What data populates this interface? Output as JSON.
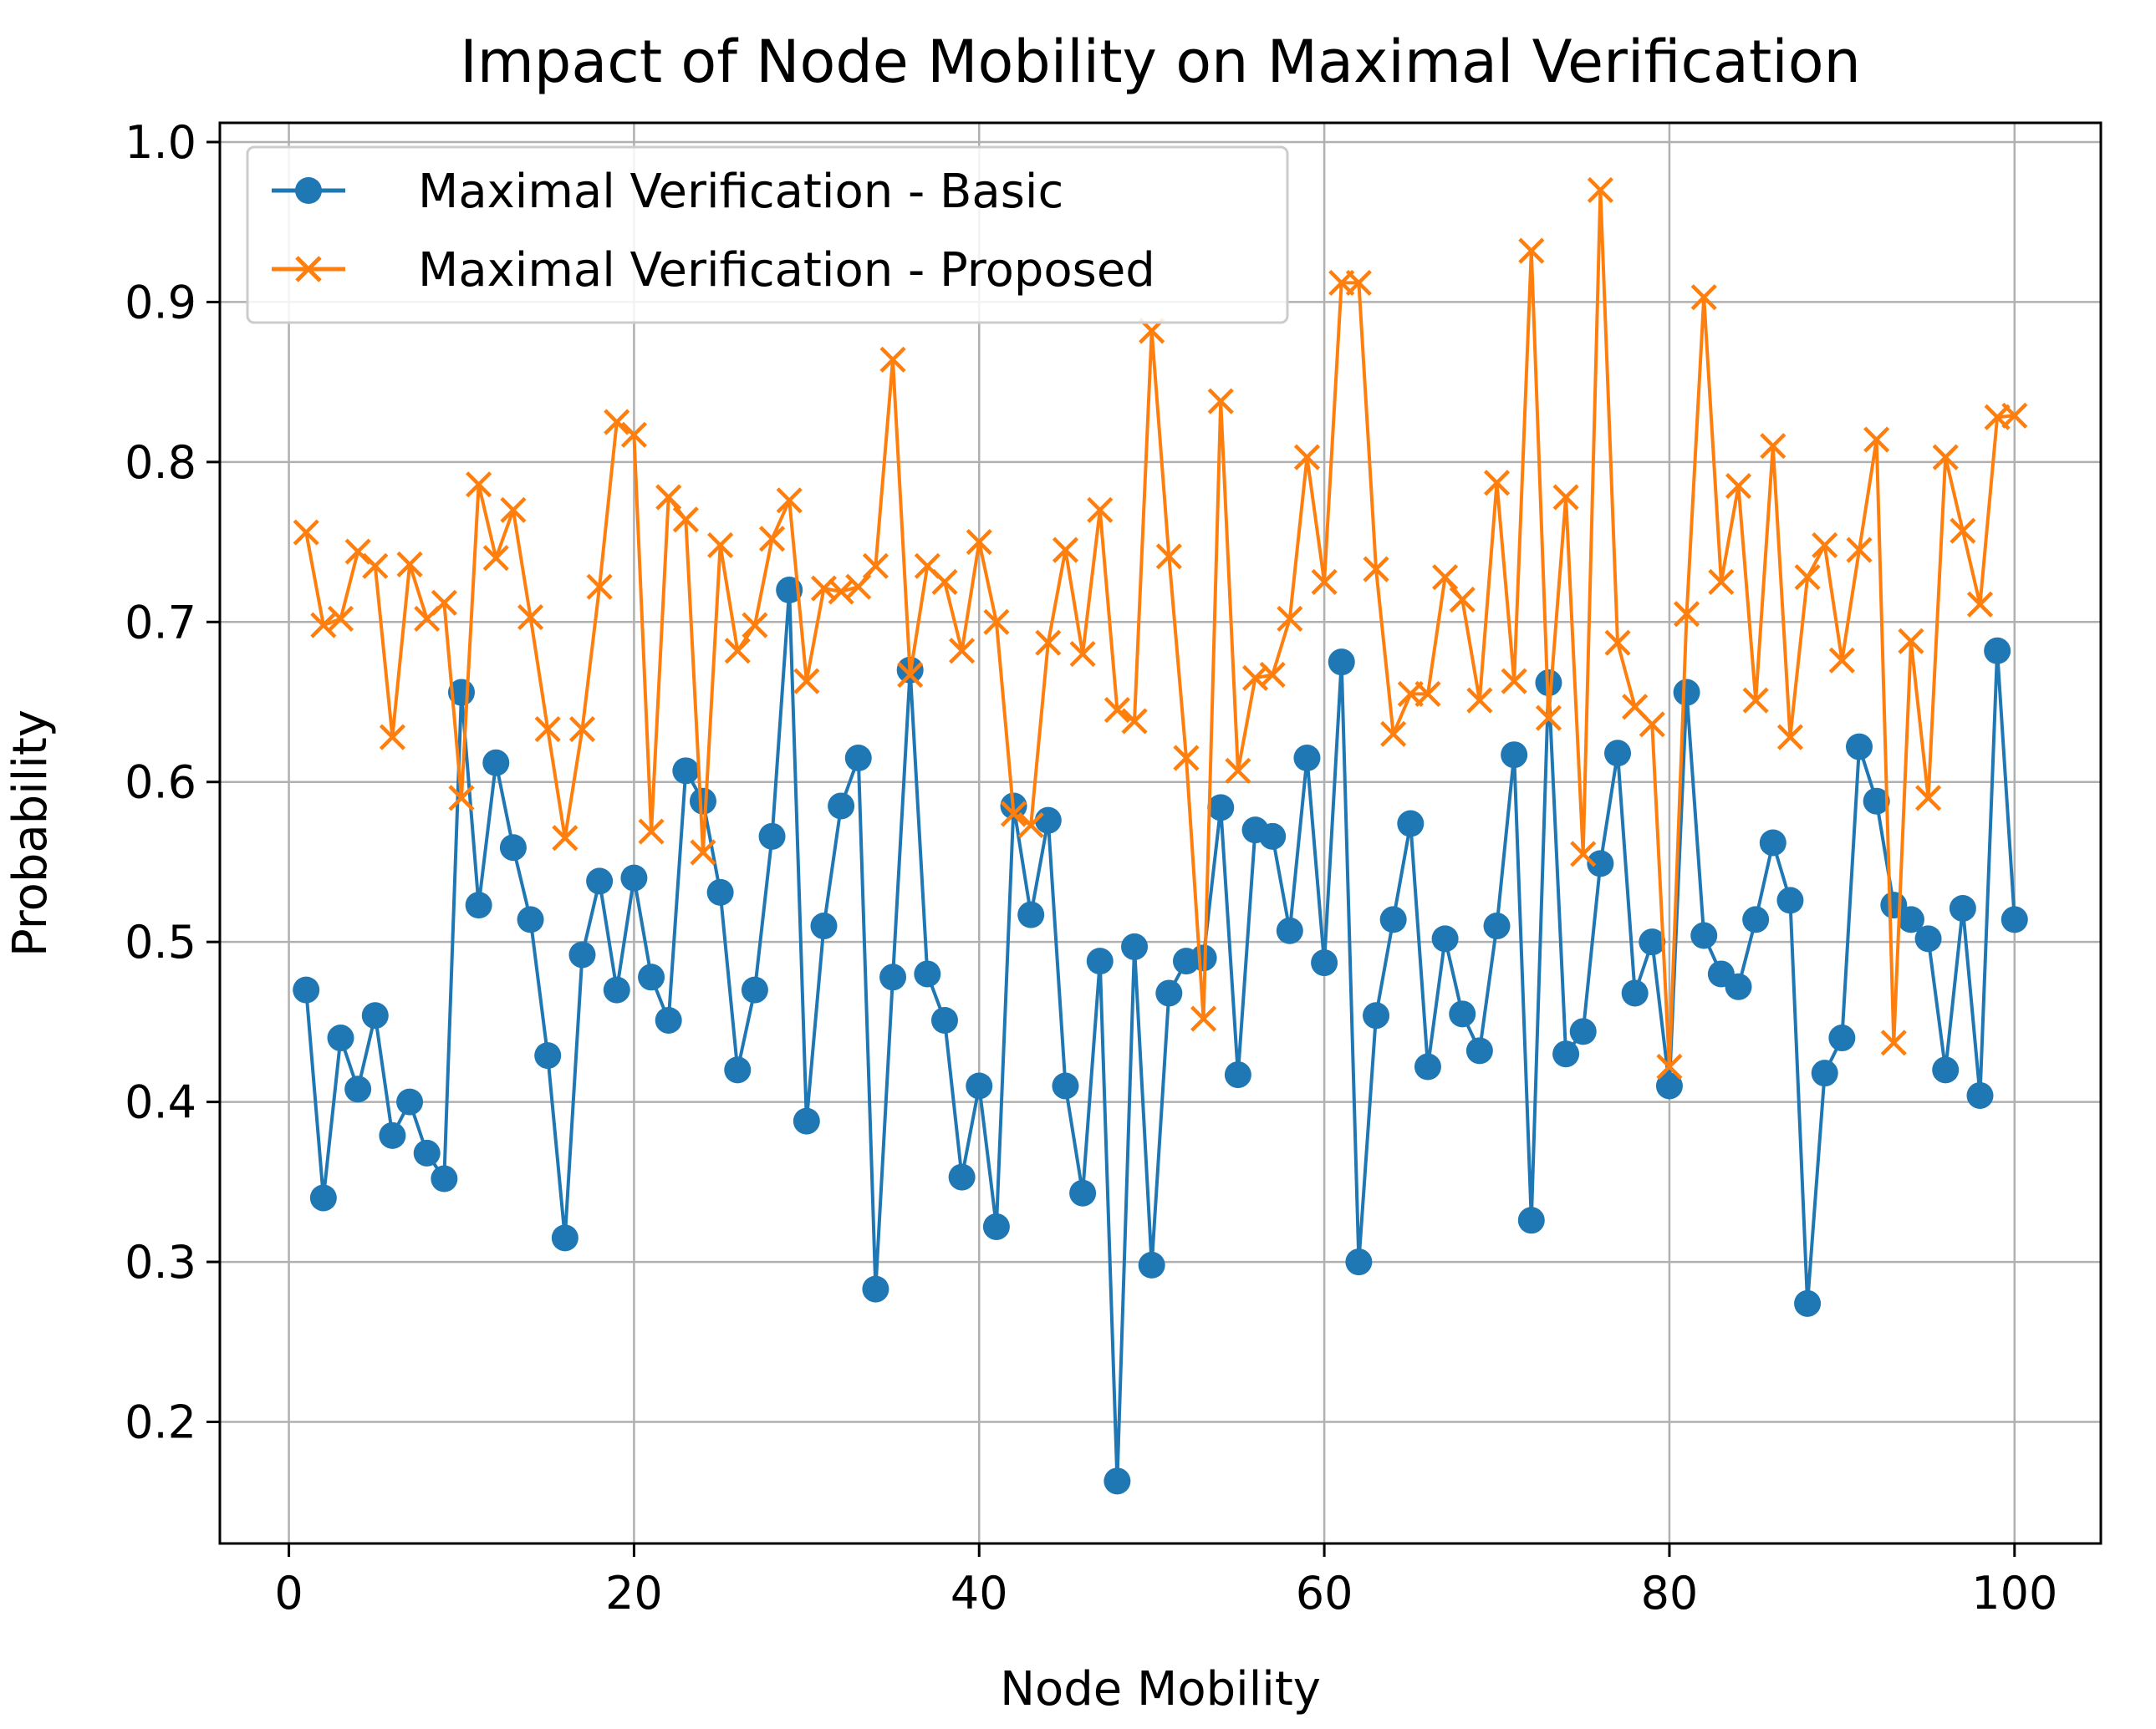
{
  "chart_data": {
    "type": "line",
    "title": "Impact of Node Mobility on Maximal Verification",
    "xlabel": "Node Mobility",
    "ylabel": "Probability",
    "xlim": [
      -4,
      105
    ],
    "ylim": [
      0.124,
      1.012
    ],
    "xticks": [
      "0",
      "20",
      "40",
      "60",
      "80",
      "100"
    ],
    "yticks": [
      "0.2",
      "0.3",
      "0.4",
      "0.5",
      "0.6",
      "0.7",
      "0.8",
      "0.9",
      "1.0"
    ],
    "grid": true,
    "legend_position": "top-left",
    "x": [
      1,
      2,
      3,
      4,
      5,
      6,
      7,
      8,
      9,
      10,
      11,
      12,
      13,
      14,
      15,
      16,
      17,
      18,
      19,
      20,
      21,
      22,
      23,
      24,
      25,
      26,
      27,
      28,
      29,
      30,
      31,
      32,
      33,
      34,
      35,
      36,
      37,
      38,
      39,
      40,
      41,
      42,
      43,
      44,
      45,
      46,
      47,
      48,
      49,
      50,
      51,
      52,
      53,
      54,
      55,
      56,
      57,
      58,
      59,
      60,
      61,
      62,
      63,
      64,
      65,
      66,
      67,
      68,
      69,
      70,
      71,
      72,
      73,
      74,
      75,
      76,
      77,
      78,
      79,
      80,
      81,
      82,
      83,
      84,
      85,
      86,
      87,
      88,
      89,
      90,
      91,
      92,
      93,
      94,
      95,
      96,
      97,
      98,
      99,
      100
    ],
    "series": [
      {
        "name": "Maximal Verification - Basic",
        "color": "#1f77b4",
        "marker": "circle",
        "values": [
          0.47,
          0.34,
          0.44,
          0.408,
          0.454,
          0.379,
          0.4,
          0.368,
          0.352,
          0.656,
          0.523,
          0.612,
          0.559,
          0.514,
          0.429,
          0.315,
          0.492,
          0.538,
          0.47,
          0.54,
          0.478,
          0.451,
          0.607,
          0.588,
          0.531,
          0.42,
          0.47,
          0.566,
          0.72,
          0.388,
          0.51,
          0.585,
          0.615,
          0.283,
          0.478,
          0.67,
          0.48,
          0.451,
          0.353,
          0.41,
          0.322,
          0.585,
          0.517,
          0.576,
          0.41,
          0.343,
          0.488,
          0.163,
          0.497,
          0.298,
          0.468,
          0.488,
          0.49,
          0.584,
          0.417,
          0.57,
          0.566,
          0.507,
          0.615,
          0.487,
          0.675,
          0.3,
          0.454,
          0.514,
          0.574,
          0.422,
          0.502,
          0.455,
          0.432,
          0.51,
          0.617,
          0.326,
          0.662,
          0.43,
          0.444,
          0.549,
          0.618,
          0.468,
          0.5,
          0.41,
          0.656,
          0.504,
          0.48,
          0.472,
          0.514,
          0.562,
          0.526,
          0.274,
          0.418,
          0.44,
          0.622,
          0.588,
          0.523,
          0.514,
          0.502,
          0.42,
          0.521,
          0.404,
          0.682,
          0.514
        ]
      },
      {
        "name": "Maximal Verification - Proposed",
        "color": "#ff7f0e",
        "marker": "x",
        "values": [
          0.756,
          0.698,
          0.702,
          0.744,
          0.735,
          0.628,
          0.736,
          0.702,
          0.712,
          0.59,
          0.786,
          0.74,
          0.77,
          0.703,
          0.633,
          0.565,
          0.633,
          0.722,
          0.825,
          0.817,
          0.569,
          0.778,
          0.764,
          0.556,
          0.748,
          0.682,
          0.698,
          0.752,
          0.776,
          0.663,
          0.721,
          0.719,
          0.722,
          0.735,
          0.864,
          0.667,
          0.735,
          0.725,
          0.682,
          0.75,
          0.7,
          0.58,
          0.573,
          0.687,
          0.745,
          0.68,
          0.77,
          0.645,
          0.638,
          0.882,
          0.741,
          0.615,
          0.452,
          0.838,
          0.607,
          0.665,
          0.667,
          0.702,
          0.803,
          0.725,
          0.912,
          0.912,
          0.733,
          0.63,
          0.655,
          0.655,
          0.728,
          0.714,
          0.651,
          0.787,
          0.663,
          0.932,
          0.64,
          0.778,
          0.555,
          0.97,
          0.687,
          0.647,
          0.636,
          0.422,
          0.705,
          0.903,
          0.725,
          0.785,
          0.651,
          0.81,
          0.628,
          0.728,
          0.748,
          0.676,
          0.745,
          0.814,
          0.437,
          0.688,
          0.59,
          0.803,
          0.757,
          0.711,
          0.828,
          0.829
        ]
      }
    ]
  }
}
